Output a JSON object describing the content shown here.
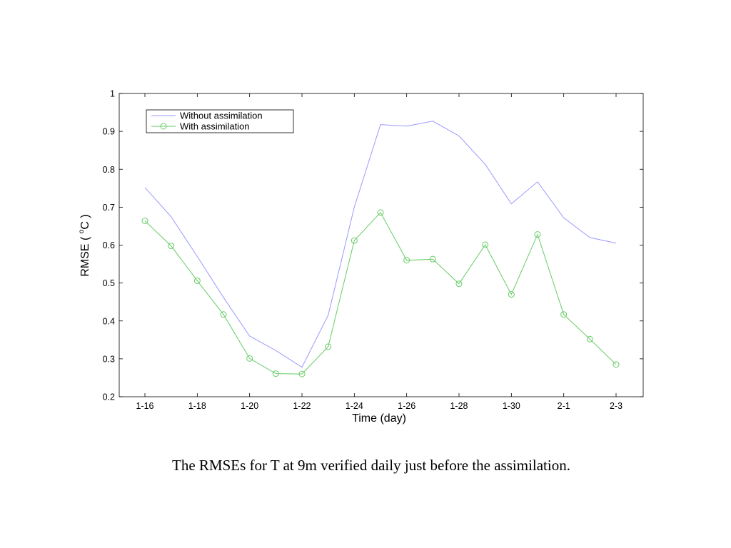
{
  "caption": "The RMSEs for T at 9m verified daily just before the assimilation.",
  "chart_data": {
    "type": "line",
    "xlabel": "Time (day)",
    "ylabel_prefix": "RMSE ( ",
    "ylabel_unit_sup": "o",
    "ylabel_unit": "C",
    "ylabel_suffix": " )",
    "x_tick_labels": [
      "1-16",
      "1-18",
      "1-20",
      "1-22",
      "1-24",
      "1-26",
      "1-28",
      "1-30",
      "2-1",
      "2-3"
    ],
    "x_tick_index": [
      0,
      2,
      4,
      6,
      8,
      10,
      12,
      14,
      16,
      18
    ],
    "categories": [
      "1-16",
      "1-17",
      "1-18",
      "1-19",
      "1-20",
      "1-21",
      "1-22",
      "1-23",
      "1-24",
      "1-25",
      "1-26",
      "1-27",
      "1-28",
      "1-29",
      "1-30",
      "1-31",
      "2-1",
      "2-2",
      "2-3"
    ],
    "ylim": [
      0.2,
      1.0
    ],
    "y_ticks": [
      0.2,
      0.3,
      0.4,
      0.5,
      0.6,
      0.7,
      0.8,
      0.9,
      1
    ],
    "y_tick_labels": [
      "0.2",
      "0.3",
      "0.4",
      "0.5",
      "0.6",
      "0.7",
      "0.8",
      "0.9",
      "1"
    ],
    "grid": false,
    "legend_position": "top-left",
    "series": [
      {
        "name": "Without assimilation",
        "color": "#9999ff",
        "marker": "none",
        "values": [
          0.752,
          0.675,
          0.57,
          0.462,
          0.36,
          0.322,
          0.278,
          0.415,
          0.7,
          0.918,
          0.914,
          0.927,
          0.888,
          0.813,
          0.709,
          0.767,
          0.672,
          0.62,
          0.605
        ]
      },
      {
        "name": "With assimilation",
        "color": "#66cc66",
        "marker": "circle",
        "values": [
          0.664,
          0.598,
          0.506,
          0.417,
          0.301,
          0.261,
          0.26,
          0.332,
          0.612,
          0.686,
          0.56,
          0.563,
          0.498,
          0.601,
          0.47,
          0.628,
          0.417,
          0.352,
          0.285
        ]
      }
    ]
  }
}
